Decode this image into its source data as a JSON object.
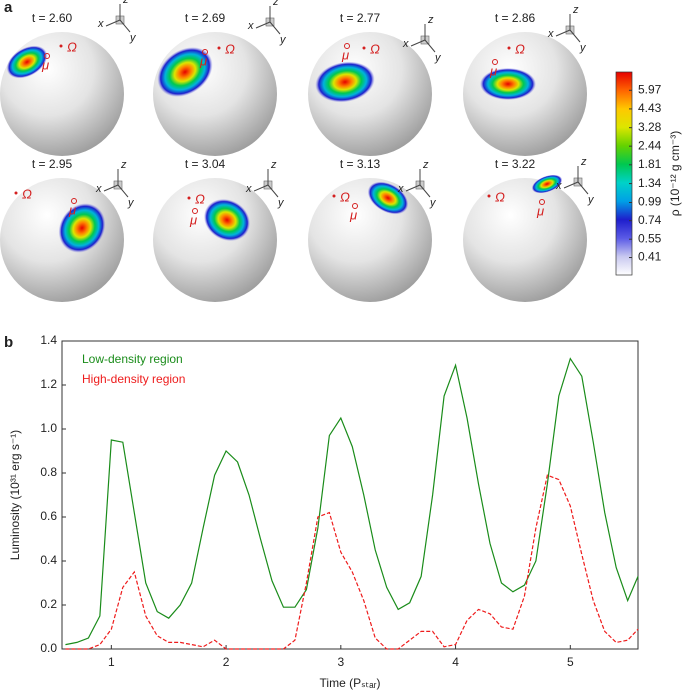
{
  "figure": {
    "panel_a_label": "a",
    "panel_b_label": "b"
  },
  "snapshots": {
    "times": [
      "t = 2.60",
      "t = 2.69",
      "t = 2.77",
      "t = 2.86",
      "t = 2.95",
      "t = 3.04",
      "t = 3.13",
      "t = 3.22"
    ],
    "omega": "Ω",
    "mu": "μ",
    "axis_labels": [
      "x",
      "y",
      "z"
    ]
  },
  "chart_data": [
    {
      "type": "colorbar",
      "label": "ρ (10⁻¹² g cm⁻³)",
      "log": true,
      "lim": [
        0.31,
        8.0
      ],
      "ticks": [
        0.41,
        0.55,
        0.74,
        0.99,
        1.34,
        1.81,
        2.44,
        3.28,
        4.43,
        5.97
      ],
      "colors": [
        "#ffffff",
        "#c8c8f0",
        "#5a5ae6",
        "#1e1ecc",
        "#00a0e6",
        "#00d2c8",
        "#00c850",
        "#64d200",
        "#dce600",
        "#ffc800",
        "#ff6400",
        "#e60000"
      ]
    },
    {
      "type": "line",
      "x_label": "Time (Pₛₜₐᵣ)",
      "y_label": "Luminosity (10³¹ erg s⁻¹)",
      "x": [
        0.6,
        0.7,
        0.8,
        0.9,
        1.0,
        1.1,
        1.2,
        1.3,
        1.4,
        1.5,
        1.6,
        1.7,
        1.8,
        1.9,
        2.0,
        2.1,
        2.2,
        2.3,
        2.4,
        2.5,
        2.6,
        2.7,
        2.8,
        2.9,
        3.0,
        3.1,
        3.2,
        3.3,
        3.4,
        3.5,
        3.6,
        3.7,
        3.8,
        3.9,
        4.0,
        4.1,
        4.2,
        4.3,
        4.4,
        4.5,
        4.6,
        4.7,
        4.8,
        4.9,
        5.0,
        5.1,
        5.2,
        5.3,
        5.4,
        5.5,
        5.59
      ],
      "series": [
        {
          "name": "Low-density region",
          "color": "#1a8c1a",
          "dashed": false,
          "values": [
            0.02,
            0.03,
            0.05,
            0.15,
            0.95,
            0.94,
            0.62,
            0.3,
            0.17,
            0.14,
            0.2,
            0.3,
            0.55,
            0.79,
            0.9,
            0.85,
            0.7,
            0.5,
            0.31,
            0.19,
            0.19,
            0.27,
            0.55,
            0.97,
            1.05,
            0.92,
            0.7,
            0.45,
            0.28,
            0.18,
            0.21,
            0.33,
            0.7,
            1.15,
            1.29,
            1.05,
            0.75,
            0.48,
            0.3,
            0.26,
            0.29,
            0.4,
            0.75,
            1.15,
            1.32,
            1.24,
            0.94,
            0.62,
            0.37,
            0.22,
            0.33
          ]
        },
        {
          "name": "High-density region",
          "color": "#ee1c1c",
          "dashed": true,
          "values": [
            0,
            0,
            0,
            0.02,
            0.09,
            0.28,
            0.35,
            0.15,
            0.06,
            0.03,
            0.03,
            0.02,
            0.01,
            0.04,
            0,
            0,
            0,
            0,
            0,
            0,
            0.04,
            0.3,
            0.6,
            0.62,
            0.44,
            0.35,
            0.22,
            0.05,
            0,
            0,
            0.04,
            0.08,
            0.08,
            0.01,
            0.02,
            0.13,
            0.18,
            0.16,
            0.1,
            0.09,
            0.24,
            0.55,
            0.79,
            0.77,
            0.65,
            0.43,
            0.22,
            0.08,
            0.03,
            0.04,
            0.09
          ]
        }
      ],
      "xlim": [
        0.57,
        5.59
      ],
      "ylim": [
        0,
        1.4
      ],
      "xticks": [
        1,
        2,
        3,
        4,
        5
      ],
      "yticks": [
        {
          "value": 0,
          "label": "0.0"
        },
        0.2,
        0.4,
        0.6,
        0.8,
        {
          "value": 1,
          "label": "1.0"
        },
        1.2,
        1.4
      ],
      "grid": false,
      "legend": "upper-left"
    }
  ]
}
